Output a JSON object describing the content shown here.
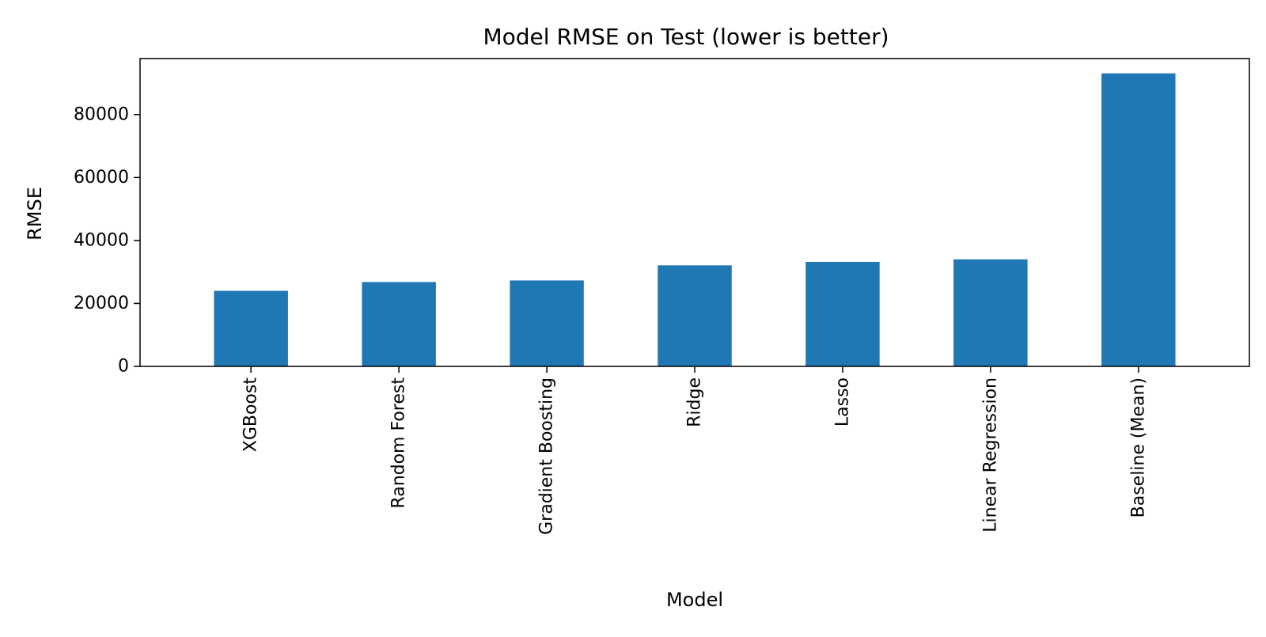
{
  "chart_data": {
    "type": "bar",
    "title": "Model RMSE on Test (lower is better)",
    "xlabel": "Model",
    "ylabel": "RMSE",
    "categories": [
      "XGBoost",
      "Random Forest",
      "Gradient Boosting",
      "Ridge",
      "Lasso",
      "Linear Regression",
      "Baseline (Mean)"
    ],
    "values": [
      24000,
      26800,
      27300,
      32100,
      33200,
      34000,
      93100
    ],
    "ylim": [
      0,
      97800
    ],
    "yticks": [
      0,
      20000,
      40000,
      60000,
      80000
    ],
    "ytick_labels": [
      "0",
      "20000",
      "40000",
      "60000",
      "80000"
    ],
    "bar_color": "#1f77b4",
    "grid": false,
    "legend": "none"
  }
}
